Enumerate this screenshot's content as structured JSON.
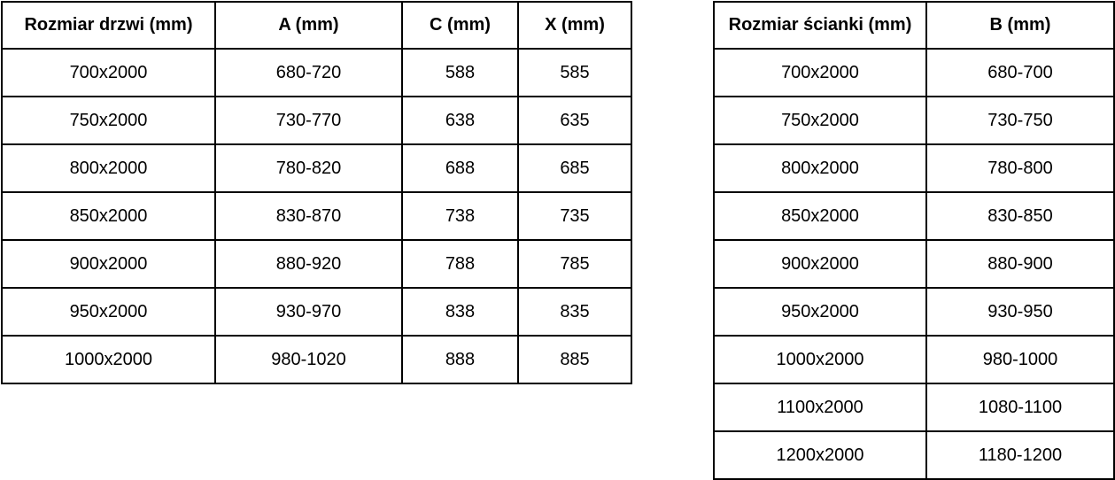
{
  "colors": {
    "background": "#ffffff",
    "border": "#000000",
    "text": "#000000"
  },
  "tables": {
    "door": {
      "headers": [
        "Rozmiar drzwi (mm)",
        "A (mm)",
        "C (mm)",
        "X (mm)"
      ],
      "rows": [
        [
          "700x2000",
          "680-720",
          "588",
          "585"
        ],
        [
          "750x2000",
          "730-770",
          "638",
          "635"
        ],
        [
          "800x2000",
          "780-820",
          "688",
          "685"
        ],
        [
          "850x2000",
          "830-870",
          "738",
          "735"
        ],
        [
          "900x2000",
          "880-920",
          "788",
          "785"
        ],
        [
          "950x2000",
          "930-970",
          "838",
          "835"
        ],
        [
          "1000x2000",
          "980-1020",
          "888",
          "885"
        ]
      ]
    },
    "wall": {
      "headers": [
        "Rozmiar ścianki (mm)",
        "B (mm)"
      ],
      "rows": [
        [
          "700x2000",
          "680-700"
        ],
        [
          "750x2000",
          "730-750"
        ],
        [
          "800x2000",
          "780-800"
        ],
        [
          "850x2000",
          "830-850"
        ],
        [
          "900x2000",
          "880-900"
        ],
        [
          "950x2000",
          "930-950"
        ],
        [
          "1000x2000",
          "980-1000"
        ],
        [
          "1100x2000",
          "1080-1100"
        ],
        [
          "1200x2000",
          "1180-1200"
        ]
      ]
    }
  }
}
